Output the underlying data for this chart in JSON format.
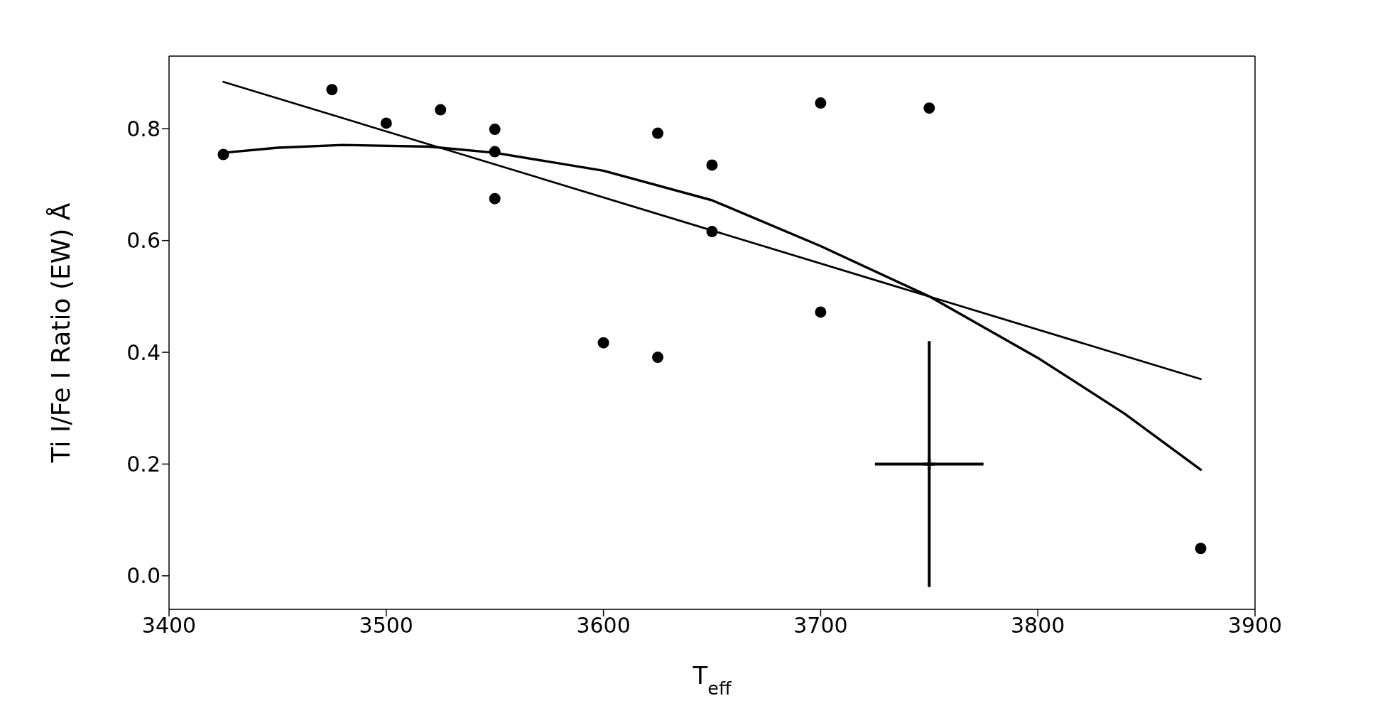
{
  "chart_data": {
    "type": "scatter",
    "xlabel": "T$_{eff}$",
    "ylabel": "Ti I/Fe I Ratio (EW) Å",
    "xlim": [
      3400,
      3900
    ],
    "ylim": [
      -0.06,
      0.93
    ],
    "xticks": [
      3400,
      3500,
      3600,
      3700,
      3800,
      3900
    ],
    "yticks": [
      {
        "value": 0,
        "label": "0.0"
      },
      0.2,
      0.4,
      0.6,
      0.8
    ],
    "series": [
      {
        "marker": "circle",
        "color": "#000000",
        "x": [
          3425,
          3475,
          3500,
          3525,
          3550,
          3550,
          3550,
          3600,
          3625,
          3625,
          3650,
          3650,
          3700,
          3700,
          3750,
          3875
        ],
        "values": [
          0.754,
          0.87,
          0.81,
          0.834,
          0.799,
          0.759,
          0.675,
          0.417,
          0.792,
          0.391,
          0.735,
          0.616,
          0.846,
          0.472,
          0.837,
          0.049
        ]
      },
      {
        "type": "line",
        "marker": "none",
        "line_style": "solid",
        "color": "#000000",
        "x": [
          3425,
          3875
        ],
        "values": [
          0.884,
          0.352
        ]
      },
      {
        "type": "line",
        "marker": "none",
        "line_style": "solid",
        "color": "#000000",
        "x": [
          3425,
          3450,
          3480,
          3520,
          3550,
          3600,
          3650,
          3700,
          3750,
          3800,
          3840,
          3875
        ],
        "values": [
          0.757,
          0.766,
          0.771,
          0.768,
          0.757,
          0.725,
          0.672,
          0.59,
          0.5,
          0.39,
          0.29,
          0.19
        ]
      },
      {
        "marker": "cross",
        "color": "#000000",
        "x": [
          3750
        ],
        "values": [
          0.2
        ],
        "errors": [
          0.22
        ],
        "xerrors": [
          25
        ]
      }
    ]
  }
}
